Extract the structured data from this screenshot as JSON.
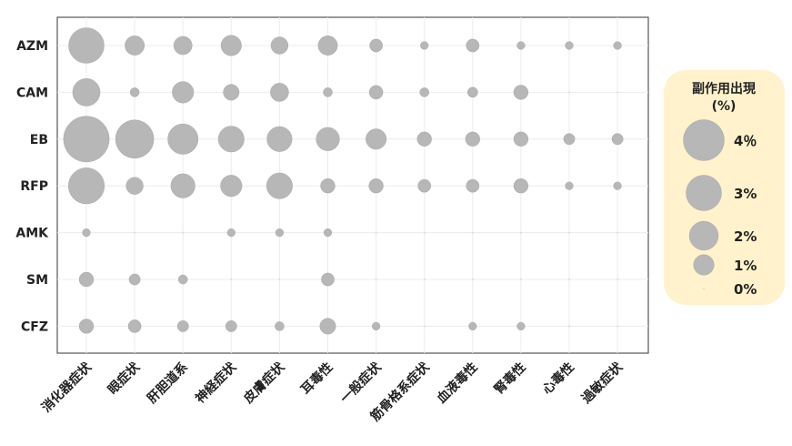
{
  "chart_data": {
    "type": "scatter",
    "subtype": "bubble",
    "rows": [
      "AZM",
      "CAM",
      "EB",
      "RFP",
      "AMK",
      "SM",
      "CFZ"
    ],
    "columns": [
      "消化器症状",
      "眼症状",
      "肝胆道系",
      "神経症状",
      "皮膚症状",
      "耳毒性",
      "一般症状",
      "筋骨格系症状",
      "血液毒性",
      "腎毒性",
      "心毒性",
      "過敏症状"
    ],
    "values": [
      [
        3.0,
        0.9,
        0.8,
        1.0,
        0.7,
        0.9,
        0.4,
        0.15,
        0.4,
        0.15,
        0.15,
        0.15
      ],
      [
        1.8,
        0.2,
        1.1,
        0.6,
        0.8,
        0.2,
        0.45,
        0.2,
        0.25,
        0.5,
        0,
        0
      ],
      [
        5.0,
        3.5,
        2.2,
        1.6,
        1.5,
        1.3,
        1.0,
        0.5,
        0.5,
        0.5,
        0.3,
        0.3
      ],
      [
        3.1,
        0.7,
        1.4,
        1.1,
        1.6,
        0.5,
        0.5,
        0.4,
        0.4,
        0.5,
        0.15,
        0.15
      ],
      [
        0.15,
        0,
        0,
        0.15,
        0.15,
        0.15,
        0,
        0,
        0,
        0,
        0,
        0
      ],
      [
        0.5,
        0.3,
        0.2,
        0,
        0,
        0.4,
        0,
        0,
        0,
        0,
        0,
        0
      ],
      [
        0.5,
        0.4,
        0.3,
        0.3,
        0.2,
        0.6,
        0.15,
        0,
        0.15,
        0.15,
        0,
        0
      ]
    ],
    "bubble_color": "#b7b7b7",
    "grid": true,
    "legend": {
      "title": "副作用出現\n(%)",
      "placement": "right",
      "background": "#fff2cc",
      "entries": [
        {
          "label": "4％",
          "value": 4
        },
        {
          "label": "3%",
          "value": 3
        },
        {
          "label": "2%",
          "value": 2
        },
        {
          "label": "1%",
          "value": 1
        },
        {
          "label": "0%",
          "value": 0
        }
      ]
    }
  }
}
